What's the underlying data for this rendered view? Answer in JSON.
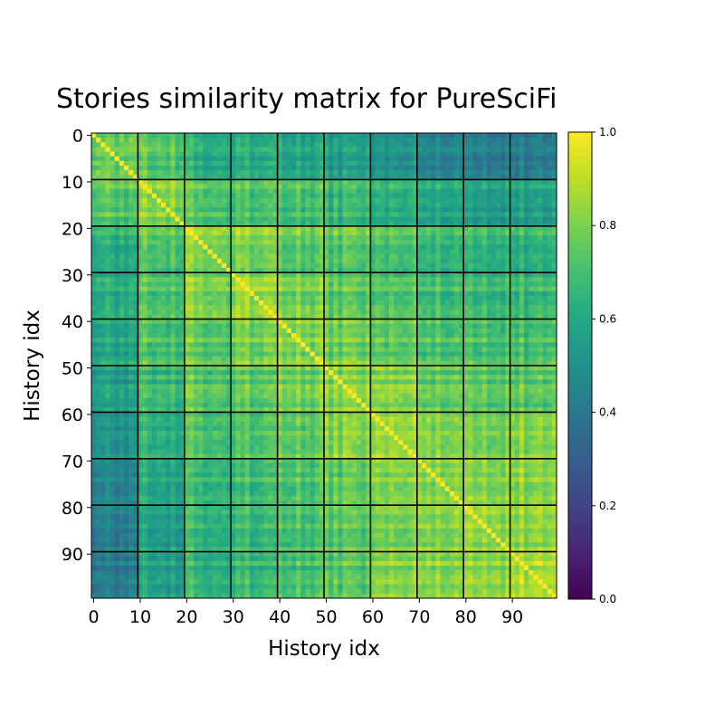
{
  "chart_data": {
    "type": "heatmap",
    "title": "Stories similarity matrix for PureSciFi",
    "xlabel": "History idx",
    "ylabel": "History idx",
    "size": 100,
    "x_ticks": [
      0,
      10,
      20,
      30,
      40,
      50,
      60,
      70,
      80,
      90
    ],
    "y_ticks": [
      0,
      10,
      20,
      30,
      40,
      50,
      60,
      70,
      80,
      90
    ],
    "block_boundaries": [
      9.5,
      19.5,
      29.5,
      39.5,
      49.5,
      59.5,
      69.5,
      79.5,
      89.5
    ],
    "colorbar": {
      "colormap": "viridis",
      "range": [
        0.0,
        1.0
      ],
      "ticks": [
        "0.0",
        "0.2",
        "0.4",
        "0.6",
        "0.8",
        "1.0"
      ]
    },
    "diagonal_value": 1.0,
    "block_mean_similarity": [
      [
        0.8,
        0.74,
        0.65,
        0.63,
        0.6,
        0.56,
        0.52,
        0.47,
        0.45,
        0.42
      ],
      [
        0.74,
        0.82,
        0.74,
        0.72,
        0.7,
        0.66,
        0.63,
        0.6,
        0.57,
        0.56
      ],
      [
        0.65,
        0.74,
        0.84,
        0.82,
        0.76,
        0.74,
        0.72,
        0.69,
        0.68,
        0.65
      ],
      [
        0.63,
        0.72,
        0.82,
        0.86,
        0.8,
        0.74,
        0.72,
        0.7,
        0.69,
        0.67
      ],
      [
        0.6,
        0.7,
        0.76,
        0.8,
        0.82,
        0.78,
        0.75,
        0.72,
        0.72,
        0.7
      ],
      [
        0.56,
        0.66,
        0.74,
        0.74,
        0.78,
        0.8,
        0.8,
        0.76,
        0.74,
        0.72
      ],
      [
        0.52,
        0.63,
        0.72,
        0.72,
        0.75,
        0.8,
        0.84,
        0.82,
        0.8,
        0.8
      ],
      [
        0.47,
        0.6,
        0.69,
        0.7,
        0.72,
        0.76,
        0.82,
        0.84,
        0.84,
        0.82
      ],
      [
        0.45,
        0.57,
        0.68,
        0.69,
        0.72,
        0.74,
        0.8,
        0.84,
        0.86,
        0.84
      ],
      [
        0.42,
        0.56,
        0.65,
        0.67,
        0.7,
        0.72,
        0.8,
        0.82,
        0.84,
        0.86
      ]
    ]
  }
}
